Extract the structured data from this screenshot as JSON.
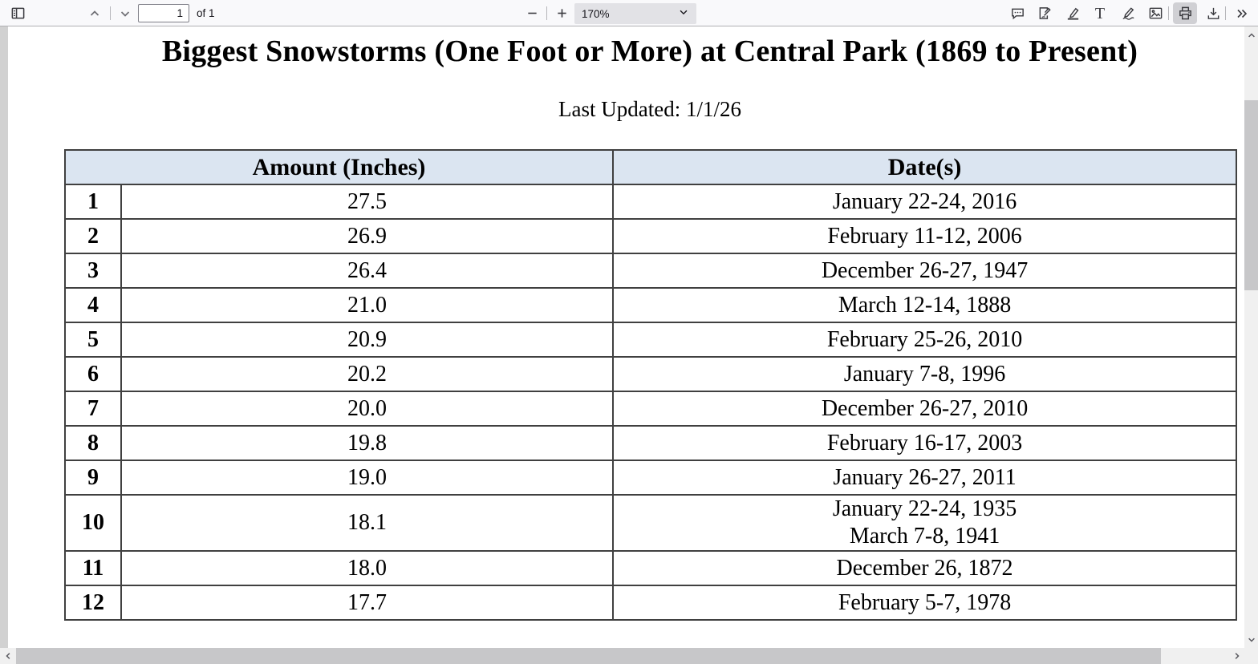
{
  "toolbar": {
    "page_input_value": "1",
    "page_count_label": "of 1",
    "zoom_level": "170%",
    "icons": [
      "sidebar-toggle",
      "previous-page",
      "next-page",
      "zoom-out",
      "zoom-in",
      "zoom-dropdown-chevron",
      "comment",
      "signature",
      "highlight",
      "free-text",
      "draw",
      "add-image",
      "print",
      "save",
      "more-tools"
    ],
    "active_tool": "print"
  },
  "document": {
    "title": "Biggest Snowstorms (One Foot or More) at Central Park (1869 to Present)",
    "last_updated": "Last Updated: 1/1/26",
    "table": {
      "headers": [
        "Amount (Inches)",
        "Date(s)"
      ],
      "rows": [
        {
          "rank": "1",
          "amount": "27.5",
          "dates": [
            "January 22-24, 2016"
          ]
        },
        {
          "rank": "2",
          "amount": "26.9",
          "dates": [
            "February 11-12, 2006"
          ]
        },
        {
          "rank": "3",
          "amount": "26.4",
          "dates": [
            "December 26-27, 1947"
          ]
        },
        {
          "rank": "4",
          "amount": "21.0",
          "dates": [
            "March 12-14, 1888"
          ]
        },
        {
          "rank": "5",
          "amount": "20.9",
          "dates": [
            "February 25-26, 2010"
          ]
        },
        {
          "rank": "6",
          "amount": "20.2",
          "dates": [
            "January 7-8, 1996"
          ]
        },
        {
          "rank": "7",
          "amount": "20.0",
          "dates": [
            "December 26-27, 2010"
          ]
        },
        {
          "rank": "8",
          "amount": "19.8",
          "dates": [
            "February 16-17, 2003"
          ]
        },
        {
          "rank": "9",
          "amount": "19.0",
          "dates": [
            "January 26-27, 2011"
          ]
        },
        {
          "rank": "10",
          "amount": "18.1",
          "dates": [
            "January 22-24, 1935",
            "March 7-8, 1941"
          ]
        },
        {
          "rank": "11",
          "amount": "18.0",
          "dates": [
            "December 26, 1872"
          ]
        },
        {
          "rank": "12",
          "amount": "17.7",
          "dates": [
            "February 5-7, 1978"
          ]
        }
      ]
    }
  },
  "colors": {
    "table_header_bg": "#dbe5f1",
    "table_border": "#404040",
    "toolbar_bg": "#f9f9fb",
    "viewer_bg": "#d1d1d1",
    "scroll_thumb": "#c7c7c9",
    "active_tool_bg": "#d0d0d4"
  }
}
